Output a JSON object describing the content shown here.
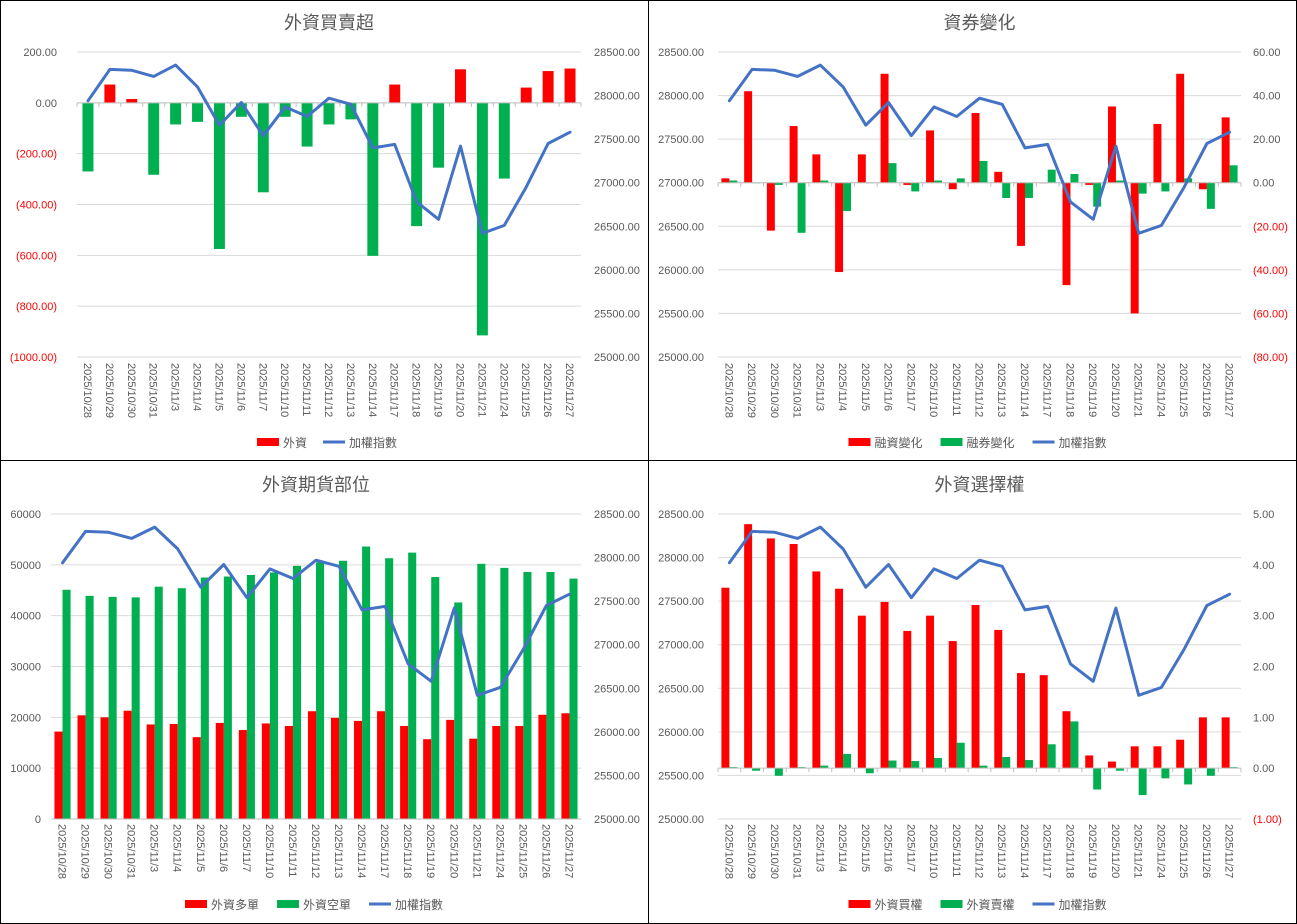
{
  "colors": {
    "red": "#ff0000",
    "green": "#00b050",
    "blue": "#4472c4",
    "grid": "#d9d9d9",
    "axis_text": "#595959",
    "title_text": "#595959",
    "negative_text": "#ff0000"
  },
  "dates": [
    "2025/10/28",
    "2025/10/29",
    "2025/10/30",
    "2025/10/31",
    "2025/11/3",
    "2025/11/4",
    "2025/11/5",
    "2025/11/6",
    "2025/11/7",
    "2025/11/10",
    "2025/11/11",
    "2025/11/12",
    "2025/11/13",
    "2025/11/14",
    "2025/11/17",
    "2025/11/18",
    "2025/11/19",
    "2025/11/20",
    "2025/11/21",
    "2025/11/24",
    "2025/11/25",
    "2025/11/26",
    "2025/11/27"
  ],
  "chart_data": [
    {
      "id": "p1",
      "type": "bar",
      "title": "外資買賣超",
      "left_axis": {
        "min": -1000,
        "max": 200,
        "step": 200,
        "ticks": [
          "(1000.00)",
          "(800.00)",
          "(600.00)",
          "(400.00)",
          "(200.00)",
          "0.00",
          "200.00"
        ]
      },
      "right_axis": {
        "min": 25000,
        "max": 28500,
        "step": 500,
        "ticks": [
          "25000.00",
          "25500.00",
          "26000.00",
          "26500.00",
          "27000.00",
          "27500.00",
          "28000.00",
          "28500.00"
        ]
      },
      "bar_series": [
        {
          "name": "外資",
          "color": "#ff0000",
          "negative_color": "#00b050",
          "values": [
            -270,
            72,
            15,
            -283,
            -85,
            -75,
            -575,
            -55,
            -352,
            -55,
            -172,
            -85,
            -65,
            -602,
            72,
            -485,
            -255,
            132,
            -915,
            -298,
            60,
            125,
            135
          ]
        }
      ],
      "line_series": {
        "name": "加權指數",
        "color": "#4472c4",
        "values": [
          27940,
          28300,
          28290,
          28220,
          28350,
          28100,
          27660,
          27920,
          27540,
          27870,
          27760,
          27970,
          27900,
          27400,
          27440,
          26780,
          26580,
          27420,
          26420,
          26510,
          26950,
          27450,
          27580
        ]
      },
      "legend": [
        {
          "label": "外資",
          "kind": "bar",
          "color": "#ff0000"
        },
        {
          "label": "加權指數",
          "kind": "line",
          "color": "#4472c4"
        }
      ]
    },
    {
      "id": "p2",
      "type": "bar",
      "title": "資券變化",
      "left_axis": {
        "min": 25000,
        "max": 28500,
        "step": 500,
        "ticks": [
          "25000.00",
          "25500.00",
          "26000.00",
          "26500.00",
          "27000.00",
          "27500.00",
          "28000.00",
          "28500.00"
        ]
      },
      "right_axis": {
        "min": -80,
        "max": 60,
        "step": 20,
        "ticks": [
          "(80.00)",
          "(60.00)",
          "(40.00)",
          "(20.00)",
          "0.00",
          "20.00",
          "40.00",
          "60.00"
        ]
      },
      "bar_series": [
        {
          "name": "融資變化",
          "color": "#ff0000",
          "values": [
            2,
            42,
            -22,
            26,
            13,
            -41,
            13,
            50,
            -1,
            24,
            -3,
            32,
            5,
            -29,
            0,
            -47,
            -1,
            35,
            -60,
            27,
            50,
            -3,
            30
          ]
        },
        {
          "name": "融券變化",
          "color": "#00b050",
          "values": [
            1,
            0,
            -1,
            -23,
            1,
            -13,
            0,
            9,
            -4,
            1,
            2,
            10,
            -7,
            -7,
            6,
            4,
            -11,
            1,
            -5,
            -4,
            2,
            -12,
            8
          ]
        }
      ],
      "line_series": {
        "name": "加權指數",
        "color": "#4472c4",
        "values": [
          27940,
          28300,
          28290,
          28220,
          28350,
          28100,
          27660,
          27920,
          27540,
          27870,
          27760,
          27970,
          27900,
          27400,
          27440,
          26780,
          26580,
          27420,
          26420,
          26510,
          26950,
          27450,
          27580
        ]
      },
      "legend": [
        {
          "label": "融資變化",
          "kind": "bar",
          "color": "#ff0000"
        },
        {
          "label": "融券變化",
          "kind": "bar",
          "color": "#00b050"
        },
        {
          "label": "加權指數",
          "kind": "line",
          "color": "#4472c4"
        }
      ]
    },
    {
      "id": "p3",
      "type": "bar",
      "title": "外資期貨部位",
      "left_axis": {
        "min": 0,
        "max": 60000,
        "step": 10000,
        "ticks": [
          "0",
          "10000",
          "20000",
          "30000",
          "40000",
          "50000",
          "60000"
        ]
      },
      "right_axis": {
        "min": 25000,
        "max": 28500,
        "step": 500,
        "ticks": [
          "25000.00",
          "25500.00",
          "26000.00",
          "26500.00",
          "27000.00",
          "27500.00",
          "28000.00",
          "28500.00"
        ]
      },
      "bar_series": [
        {
          "name": "外資多單",
          "color": "#ff0000",
          "values": [
            17200,
            20400,
            20000,
            21300,
            18600,
            18700,
            16100,
            18900,
            17500,
            18800,
            18300,
            21200,
            19900,
            19300,
            21200,
            18300,
            15700,
            19500,
            15800,
            18300,
            18300,
            20500,
            20800
          ]
        },
        {
          "name": "外資空單",
          "color": "#00b050",
          "values": [
            45100,
            43900,
            43700,
            43600,
            45700,
            45400,
            47500,
            47700,
            48000,
            48500,
            49800,
            50500,
            50800,
            53600,
            51300,
            52400,
            47600,
            42600,
            50200,
            49400,
            48600,
            48600,
            47300
          ]
        }
      ],
      "line_series": {
        "name": "加權指數",
        "color": "#4472c4",
        "values": [
          27940,
          28300,
          28290,
          28220,
          28350,
          28100,
          27660,
          27920,
          27540,
          27870,
          27760,
          27970,
          27900,
          27400,
          27440,
          26780,
          26580,
          27420,
          26420,
          26510,
          26950,
          27450,
          27580
        ]
      },
      "legend": [
        {
          "label": "外資多單",
          "kind": "bar",
          "color": "#ff0000"
        },
        {
          "label": "外資空單",
          "kind": "bar",
          "color": "#00b050"
        },
        {
          "label": "加權指數",
          "kind": "line",
          "color": "#4472c4"
        }
      ]
    },
    {
      "id": "p4",
      "type": "bar",
      "title": "外資選擇權",
      "left_axis": {
        "min": 25000,
        "max": 28500,
        "step": 500,
        "ticks": [
          "25000.00",
          "25500.00",
          "26000.00",
          "26500.00",
          "27000.00",
          "27500.00",
          "28000.00",
          "28500.00"
        ]
      },
      "right_axis": {
        "min": -1,
        "max": 5,
        "step": 1,
        "ticks": [
          "(1.00)",
          "0.00",
          "1.00",
          "2.00",
          "3.00",
          "4.00",
          "5.00"
        ]
      },
      "bar_series": [
        {
          "name": "外資買權",
          "color": "#ff0000",
          "values": [
            3.55,
            4.8,
            4.52,
            4.41,
            3.87,
            3.53,
            3.0,
            3.27,
            2.7,
            3.0,
            2.5,
            3.21,
            2.72,
            1.87,
            1.83,
            1.12,
            0.25,
            0.13,
            0.43,
            0.43,
            0.56,
            1.0,
            1.0
          ]
        },
        {
          "name": "外資賣權",
          "color": "#00b050",
          "values": [
            0.02,
            -0.05,
            -0.15,
            0.02,
            0.05,
            0.28,
            -0.1,
            0.15,
            0.14,
            0.2,
            0.5,
            0.05,
            0.22,
            0.16,
            0.47,
            0.92,
            -0.42,
            -0.05,
            -0.53,
            -0.2,
            -0.32,
            -0.15,
            0.02
          ]
        }
      ],
      "line_series": {
        "name": "加權指數",
        "color": "#4472c4",
        "values": [
          27940,
          28300,
          28290,
          28220,
          28350,
          28100,
          27660,
          27920,
          27540,
          27870,
          27760,
          27970,
          27900,
          27400,
          27440,
          26780,
          26580,
          27420,
          26420,
          26510,
          26950,
          27450,
          27580
        ]
      },
      "legend": [
        {
          "label": "外資買權",
          "kind": "bar",
          "color": "#ff0000"
        },
        {
          "label": "外資賣權",
          "kind": "bar",
          "color": "#00b050"
        },
        {
          "label": "加權指數",
          "kind": "line",
          "color": "#4472c4"
        }
      ]
    }
  ]
}
